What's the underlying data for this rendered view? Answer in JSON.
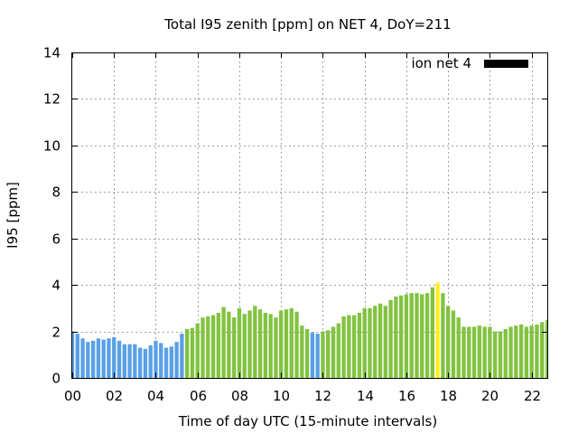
{
  "chart_data": {
    "type": "bar",
    "title": "Total I95 zenith [ppm] on NET 4, DoY=211",
    "xlabel": "Time of day UTC (15-minute intervals)",
    "ylabel": "I95 [ppm]",
    "xlim": [
      0,
      22.75
    ],
    "ylim": [
      0,
      14
    ],
    "xticks": [
      "00",
      "02",
      "04",
      "06",
      "08",
      "10",
      "12",
      "14",
      "16",
      "18",
      "20",
      "22"
    ],
    "yticks": [
      "0",
      "2",
      "4",
      "6",
      "8",
      "10",
      "12",
      "14"
    ],
    "grid": true,
    "legend": {
      "position": "top-right",
      "entries": [
        {
          "label": "ion net 4",
          "color": "#000000"
        }
      ]
    },
    "bar_interval_hours": 0.25,
    "colors": {
      "blue": "#5aa0e6",
      "green": "#82c341",
      "yellow": "#ffee22"
    },
    "series": [
      {
        "name": "ion net 4",
        "x": [
          0.0,
          0.25,
          0.5,
          0.75,
          1.0,
          1.25,
          1.5,
          1.75,
          2.0,
          2.25,
          2.5,
          2.75,
          3.0,
          3.25,
          3.5,
          3.75,
          4.0,
          4.25,
          4.5,
          4.75,
          5.0,
          5.25,
          5.5,
          5.75,
          6.0,
          6.25,
          6.5,
          6.75,
          7.0,
          7.25,
          7.5,
          7.75,
          8.0,
          8.25,
          8.5,
          8.75,
          9.0,
          9.25,
          9.5,
          9.75,
          10.0,
          10.25,
          10.5,
          10.75,
          11.0,
          11.25,
          11.5,
          11.75,
          12.0,
          12.25,
          12.5,
          12.75,
          13.0,
          13.25,
          13.5,
          13.75,
          14.0,
          14.25,
          14.5,
          14.75,
          15.0,
          15.25,
          15.5,
          15.75,
          16.0,
          16.25,
          16.5,
          16.75,
          17.0,
          17.25,
          17.5,
          17.75,
          18.0,
          18.25,
          18.5,
          18.75,
          19.0,
          19.25,
          19.5,
          19.75,
          20.0,
          20.25,
          20.5,
          20.75,
          21.0,
          21.25,
          21.5,
          21.75,
          22.0,
          22.25,
          22.5,
          22.75
        ],
        "values": [
          2.0,
          1.9,
          1.7,
          1.55,
          1.6,
          1.7,
          1.65,
          1.7,
          1.75,
          1.6,
          1.45,
          1.45,
          1.45,
          1.3,
          1.25,
          1.4,
          1.6,
          1.5,
          1.3,
          1.35,
          1.55,
          1.9,
          2.1,
          2.15,
          2.35,
          2.6,
          2.65,
          2.7,
          2.8,
          3.05,
          2.85,
          2.6,
          3.0,
          2.75,
          2.9,
          3.1,
          2.95,
          2.8,
          2.75,
          2.6,
          2.9,
          2.95,
          3.0,
          2.85,
          2.25,
          2.1,
          1.95,
          1.9,
          2.0,
          2.05,
          2.2,
          2.35,
          2.65,
          2.7,
          2.7,
          2.8,
          3.0,
          3.0,
          3.1,
          3.2,
          3.1,
          3.35,
          3.5,
          3.55,
          3.6,
          3.65,
          3.65,
          3.6,
          3.65,
          3.9,
          4.1,
          3.65,
          3.1,
          2.9,
          2.6,
          2.2,
          2.2,
          2.2,
          2.25,
          2.2,
          2.2,
          2.0,
          2.0,
          2.1,
          2.2,
          2.25,
          2.3,
          2.2,
          2.25,
          2.3,
          2.4,
          2.5
        ],
        "bar_colors": [
          "blue",
          "blue",
          "blue",
          "blue",
          "blue",
          "blue",
          "blue",
          "blue",
          "blue",
          "blue",
          "blue",
          "blue",
          "blue",
          "blue",
          "blue",
          "blue",
          "blue",
          "blue",
          "blue",
          "blue",
          "blue",
          "blue",
          "green",
          "green",
          "green",
          "green",
          "green",
          "green",
          "green",
          "green",
          "green",
          "green",
          "green",
          "green",
          "green",
          "green",
          "green",
          "green",
          "green",
          "green",
          "green",
          "green",
          "green",
          "green",
          "green",
          "green",
          "blue",
          "blue",
          "green",
          "green",
          "green",
          "green",
          "green",
          "green",
          "green",
          "green",
          "green",
          "green",
          "green",
          "green",
          "green",
          "green",
          "green",
          "green",
          "green",
          "green",
          "green",
          "green",
          "green",
          "green",
          "yellow",
          "green",
          "green",
          "green",
          "green",
          "green",
          "green",
          "green",
          "green",
          "green",
          "green",
          "green",
          "green",
          "green",
          "green",
          "green",
          "green",
          "green",
          "green",
          "green",
          "green",
          "green"
        ]
      }
    ]
  }
}
